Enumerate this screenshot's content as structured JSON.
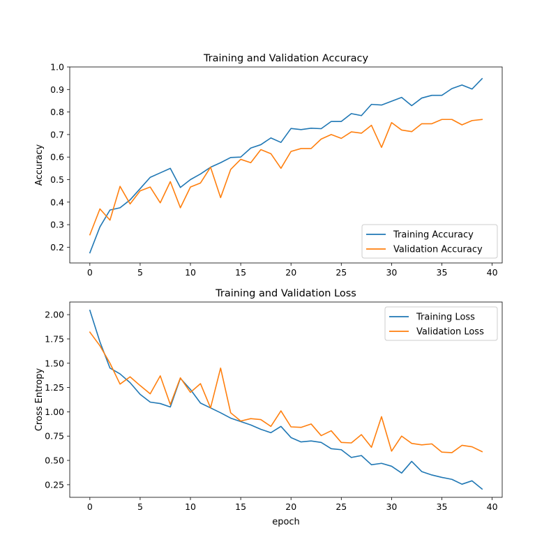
{
  "chart_data": [
    {
      "type": "line",
      "title": "Training and Validation Accuracy",
      "xlabel": "",
      "ylabel": "Accuracy",
      "xlim": [
        -2,
        41
      ],
      "ylim": [
        0.13,
        1.0
      ],
      "xticks": [
        0,
        5,
        10,
        15,
        20,
        25,
        30,
        35,
        40
      ],
      "yticks": [
        0.2,
        0.3,
        0.4,
        0.5,
        0.6,
        0.7,
        0.8,
        0.9,
        1.0
      ],
      "ytick_decimals": 1,
      "grid": false,
      "legend": "lower-right",
      "x": [
        0,
        1,
        2,
        3,
        4,
        5,
        6,
        7,
        8,
        9,
        10,
        11,
        12,
        13,
        14,
        15,
        16,
        17,
        18,
        19,
        20,
        21,
        22,
        23,
        24,
        25,
        26,
        27,
        28,
        29,
        30,
        31,
        32,
        33,
        34,
        35,
        36,
        37,
        38,
        39
      ],
      "series": [
        {
          "name": "Training Accuracy",
          "color": "#1f77b4",
          "values": [
            0.175,
            0.29,
            0.365,
            0.375,
            0.41,
            0.46,
            0.51,
            0.53,
            0.55,
            0.465,
            0.5,
            0.525,
            0.555,
            0.575,
            0.598,
            0.6,
            0.64,
            0.655,
            0.685,
            0.665,
            0.727,
            0.722,
            0.728,
            0.726,
            0.758,
            0.758,
            0.793,
            0.784,
            0.834,
            0.831,
            0.848,
            0.865,
            0.828,
            0.862,
            0.874,
            0.874,
            0.904,
            0.92,
            0.902,
            0.948
          ]
        },
        {
          "name": "Validation Accuracy",
          "color": "#ff7f0e",
          "values": [
            0.255,
            0.37,
            0.32,
            0.47,
            0.392,
            0.45,
            0.467,
            0.397,
            0.491,
            0.375,
            0.467,
            0.485,
            0.555,
            0.42,
            0.545,
            0.59,
            0.575,
            0.633,
            0.615,
            0.55,
            0.625,
            0.638,
            0.638,
            0.68,
            0.7,
            0.683,
            0.712,
            0.706,
            0.741,
            0.643,
            0.753,
            0.72,
            0.713,
            0.748,
            0.748,
            0.767,
            0.767,
            0.743,
            0.762,
            0.767
          ]
        }
      ]
    },
    {
      "type": "line",
      "title": "Training and Validation Loss",
      "xlabel": "epoch",
      "ylabel": "Cross Entropy",
      "xlim": [
        -2,
        41
      ],
      "ylim": [
        0.12,
        2.13
      ],
      "xticks": [
        0,
        5,
        10,
        15,
        20,
        25,
        30,
        35,
        40
      ],
      "yticks": [
        0.25,
        0.5,
        0.75,
        1.0,
        1.25,
        1.5,
        1.75,
        2.0
      ],
      "ytick_decimals": 2,
      "grid": false,
      "legend": "upper-right",
      "x": [
        0,
        1,
        2,
        3,
        4,
        5,
        6,
        7,
        8,
        9,
        10,
        11,
        12,
        13,
        14,
        15,
        16,
        17,
        18,
        19,
        20,
        21,
        22,
        23,
        24,
        25,
        26,
        27,
        28,
        29,
        30,
        31,
        32,
        33,
        34,
        35,
        36,
        37,
        38,
        39
      ],
      "series": [
        {
          "name": "Training Loss",
          "color": "#1f77b4",
          "values": [
            2.045,
            1.72,
            1.45,
            1.39,
            1.3,
            1.18,
            1.1,
            1.085,
            1.05,
            1.345,
            1.23,
            1.09,
            1.04,
            0.99,
            0.935,
            0.9,
            0.865,
            0.82,
            0.785,
            0.85,
            0.735,
            0.69,
            0.7,
            0.685,
            0.62,
            0.61,
            0.53,
            0.55,
            0.455,
            0.47,
            0.44,
            0.37,
            0.49,
            0.385,
            0.35,
            0.325,
            0.305,
            0.255,
            0.29,
            0.205
          ]
        },
        {
          "name": "Validation Loss",
          "color": "#ff7f0e",
          "values": [
            1.82,
            1.68,
            1.5,
            1.285,
            1.36,
            1.27,
            1.185,
            1.37,
            1.075,
            1.35,
            1.2,
            1.29,
            1.04,
            1.45,
            0.99,
            0.905,
            0.93,
            0.92,
            0.85,
            1.01,
            0.845,
            0.84,
            0.875,
            0.755,
            0.805,
            0.685,
            0.68,
            0.765,
            0.635,
            0.95,
            0.595,
            0.75,
            0.675,
            0.66,
            0.67,
            0.585,
            0.58,
            0.655,
            0.64,
            0.59
          ]
        }
      ]
    }
  ]
}
